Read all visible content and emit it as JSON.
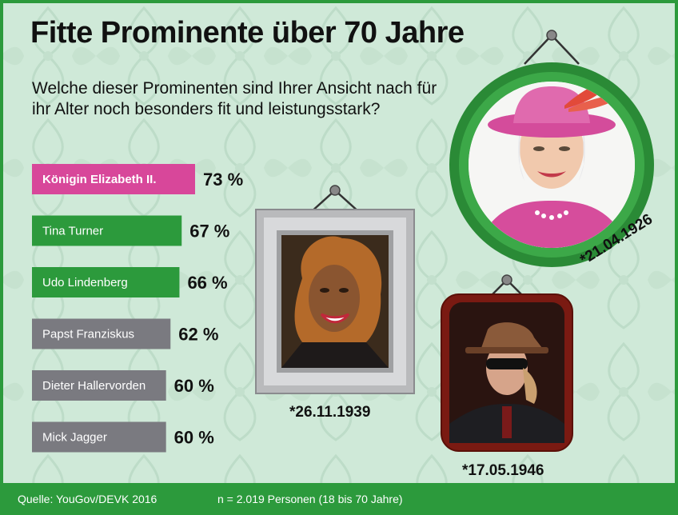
{
  "title": "Fitte Prominente über 70 Jahre",
  "subtitle": "Welche dieser Prominenten sind Ihrer Ansicht nach für ihr Alter noch besonders fit und leistungsstark?",
  "footer": {
    "source": "Quelle: YouGov/DEVK 2016",
    "sample": "n = 2.019 Personen (18 bis 70 Jahre)"
  },
  "portraits": {
    "elizabeth": {
      "birth": "*21.04.1926"
    },
    "turner": {
      "birth": "*26.11.1939"
    },
    "lindenberg": {
      "birth": "*17.05.1946"
    }
  },
  "colors": {
    "pink": "#d8479a",
    "green": "#2c9a3c",
    "gray": "#7a7a80",
    "background": "#cfe9d8"
  },
  "chart_data": {
    "type": "bar",
    "orientation": "horizontal",
    "categories": [
      "Königin Elizabeth II.",
      "Tina Turner",
      "Udo Lindenberg",
      "Papst Franziskus",
      "Dieter Hallervorden",
      "Mick Jagger"
    ],
    "values": [
      73,
      67,
      66,
      62,
      60,
      60
    ],
    "value_labels": [
      "73 %",
      "67 %",
      "66 %",
      "62 %",
      "60 %",
      "60 %"
    ],
    "bar_colors": [
      "#d8479a",
      "#2c9a3c",
      "#2c9a3c",
      "#7a7a80",
      "#7a7a80",
      "#7a7a80"
    ],
    "unit": "%",
    "xlim": [
      0,
      73
    ]
  }
}
